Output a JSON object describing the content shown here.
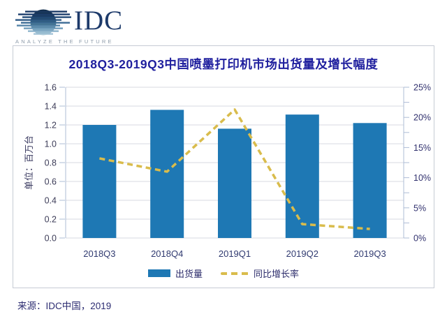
{
  "logo": {
    "name": "IDC",
    "tagline": "ANALYZE THE FUTURE"
  },
  "source_note": "来源：IDC中国，2019",
  "colors": {
    "bar_blue": "#1e78b4",
    "line_yellow": "#d9bc4c",
    "title_blue": "#1f1f9e",
    "axis_line": "#aebcd6",
    "gridline": "#d7dae1"
  },
  "chart_data": {
    "type": "bar",
    "combo": "bar+dashed-line",
    "title": "2018Q3-2019Q3中国喷墨打印机市场出货量及增长幅度",
    "categories": [
      "2018Q3",
      "2018Q4",
      "2019Q1",
      "2019Q2",
      "2019Q3"
    ],
    "series": [
      {
        "name": "出货量",
        "type": "bar",
        "axis": "left",
        "color": "#1e78b4",
        "values": [
          1.2,
          1.36,
          1.16,
          1.31,
          1.22
        ]
      },
      {
        "name": "同比增长率",
        "type": "line",
        "style": "dashed",
        "axis": "right",
        "color": "#d9bc4c",
        "values": [
          13.2,
          11.0,
          21.3,
          2.3,
          1.5
        ]
      }
    ],
    "left_axis": {
      "label": "单位：百万台",
      "min": 0,
      "max": 1.6,
      "step": 0.2,
      "ticks": [
        "0.0",
        "0.2",
        "0.4",
        "0.6",
        "0.8",
        "1.0",
        "1.2",
        "1.4",
        "1.6"
      ]
    },
    "right_axis": {
      "min": 0,
      "max": 25,
      "step": 5,
      "minor_step": 2.5,
      "ticks": [
        "0%",
        "5%",
        "10%",
        "15%",
        "20%",
        "25%"
      ]
    },
    "grid": "horizontal",
    "legend_position": "bottom-center",
    "xlabel": "",
    "ylabel": "单位：百万台"
  }
}
